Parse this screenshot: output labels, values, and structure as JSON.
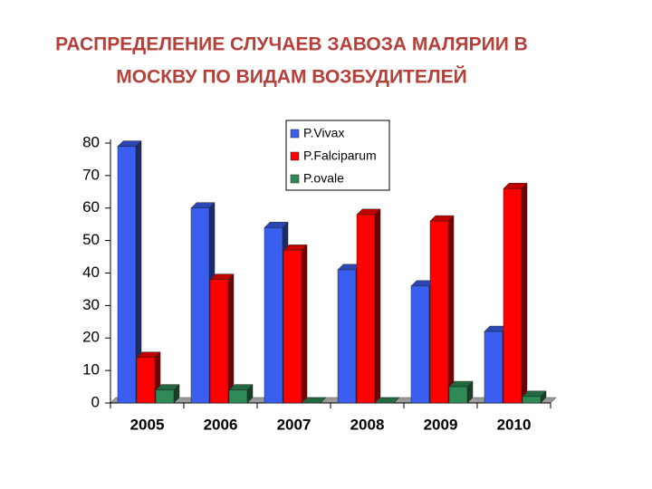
{
  "chart_data": {
    "type": "bar3d",
    "title_lines": [
      "РАСПРЕДЕЛЕНИЕ СЛУЧАЕВ ЗАВОЗА МАЛЯРИИ В",
      "МОСКВУ ПО ВИДАМ ВОЗБУДИТЕЛЕЙ"
    ],
    "categories": [
      "2005",
      "2006",
      "2007",
      "2008",
      "2009",
      "2010"
    ],
    "series": [
      {
        "name": "P.Vivax",
        "color": "#3a5ff0",
        "values": [
          79,
          60,
          54,
          41,
          36,
          22
        ]
      },
      {
        "name": "P.Falciparum",
        "color": "#ff0000",
        "values": [
          14,
          38,
          47,
          58,
          56,
          66
        ]
      },
      {
        "name": "P.ovale",
        "color": "#2e8b57",
        "values": [
          4,
          4,
          0,
          0,
          5,
          2
        ]
      }
    ],
    "ylim": [
      0,
      80
    ],
    "yticks": [
      0,
      10,
      20,
      30,
      40,
      50,
      60,
      70,
      80
    ]
  }
}
